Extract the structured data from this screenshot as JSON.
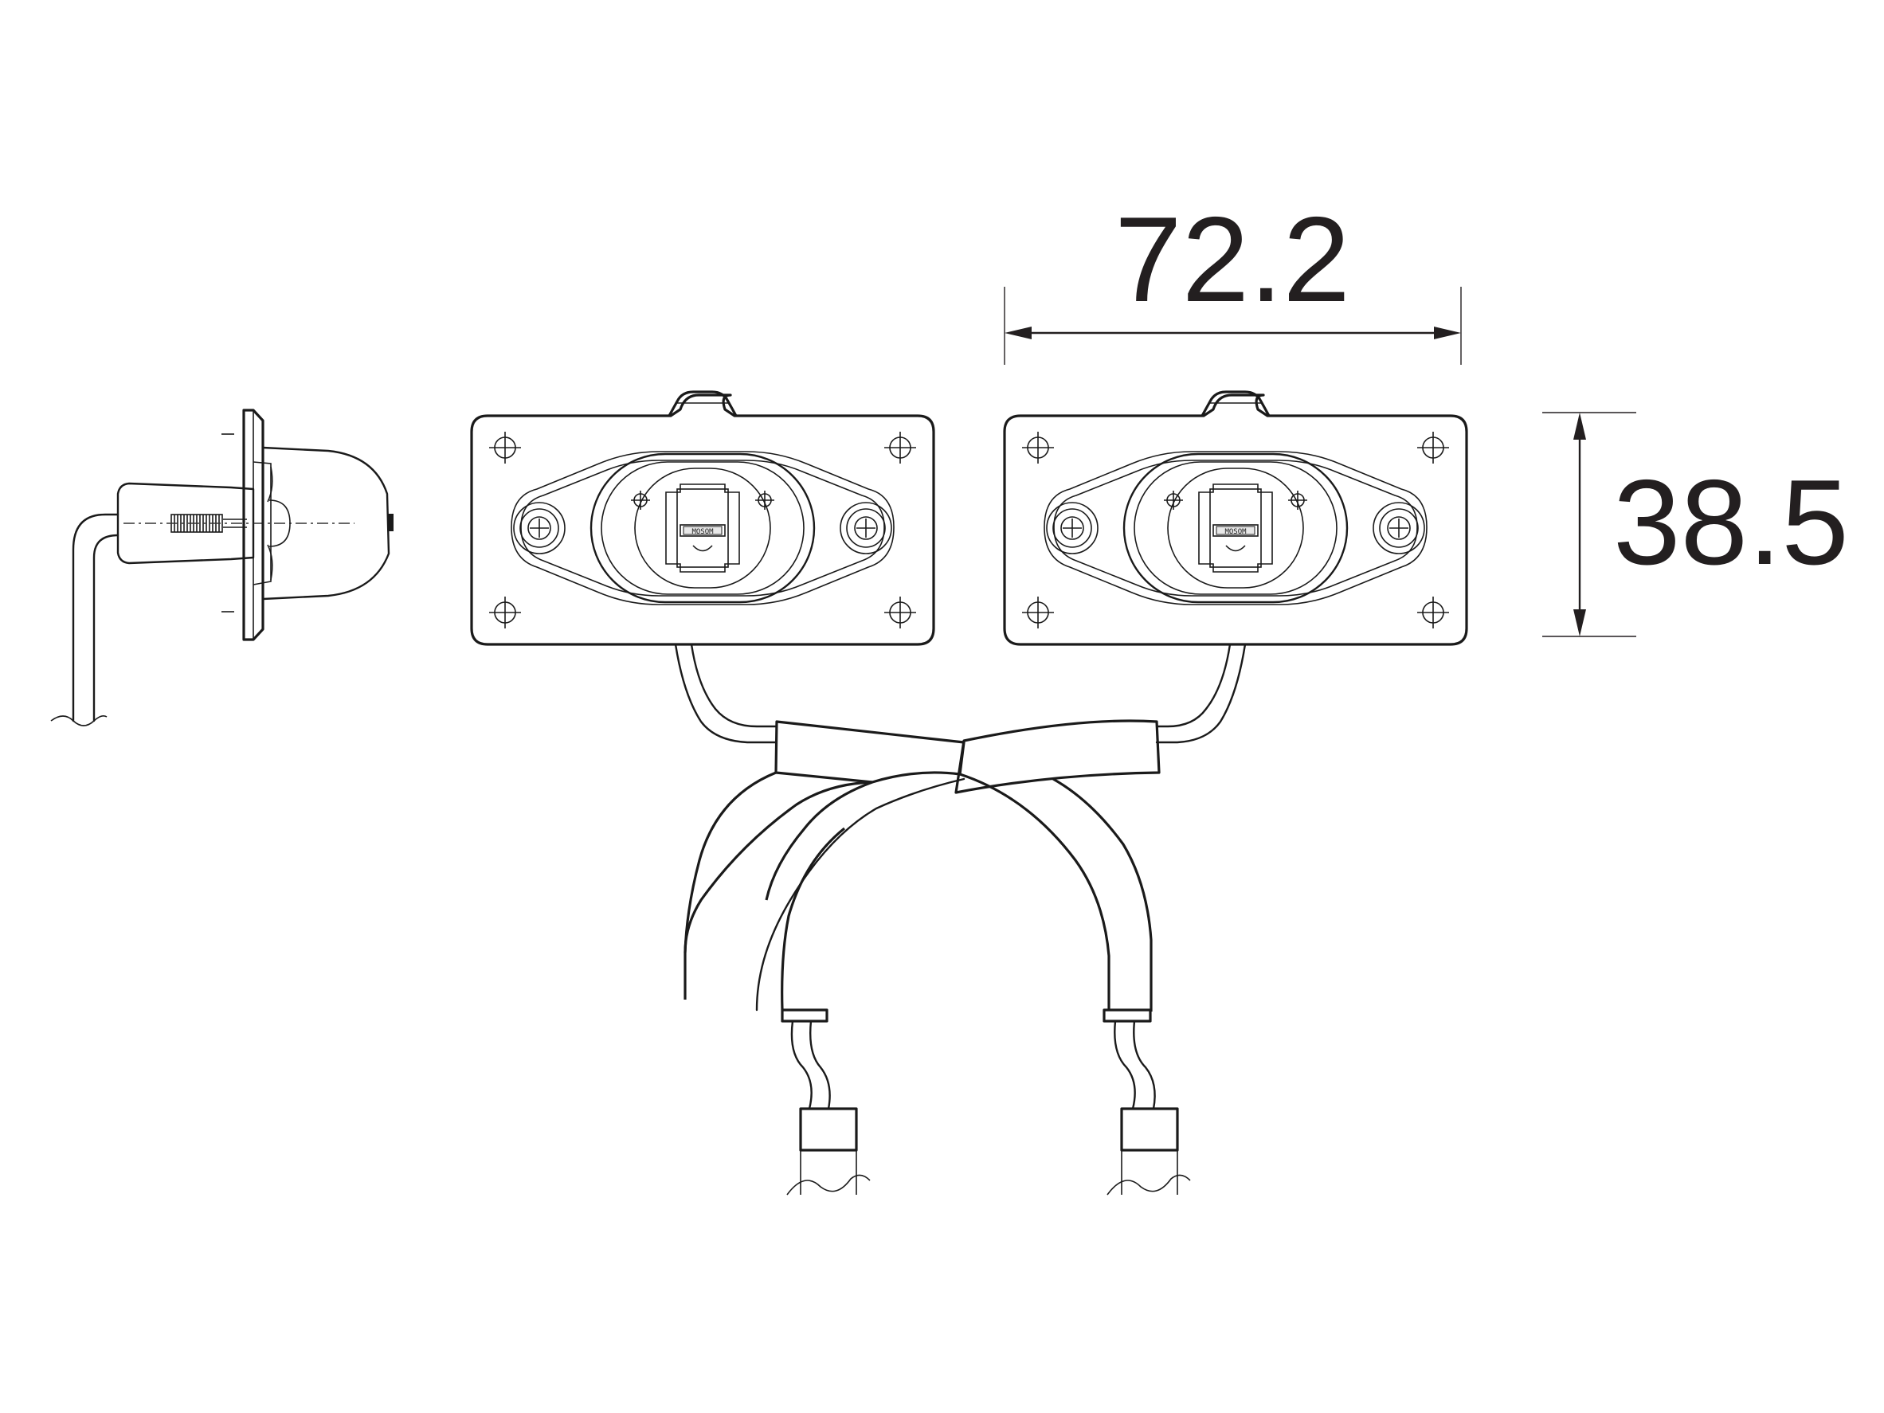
{
  "dimensions": {
    "width_label": "72.2",
    "height_label": "38.5"
  },
  "lamp": {
    "chip_marking": "MOSOM"
  },
  "colors": {
    "line": "#1a1a1a",
    "dimension": "#231f20",
    "background": "#ffffff"
  }
}
